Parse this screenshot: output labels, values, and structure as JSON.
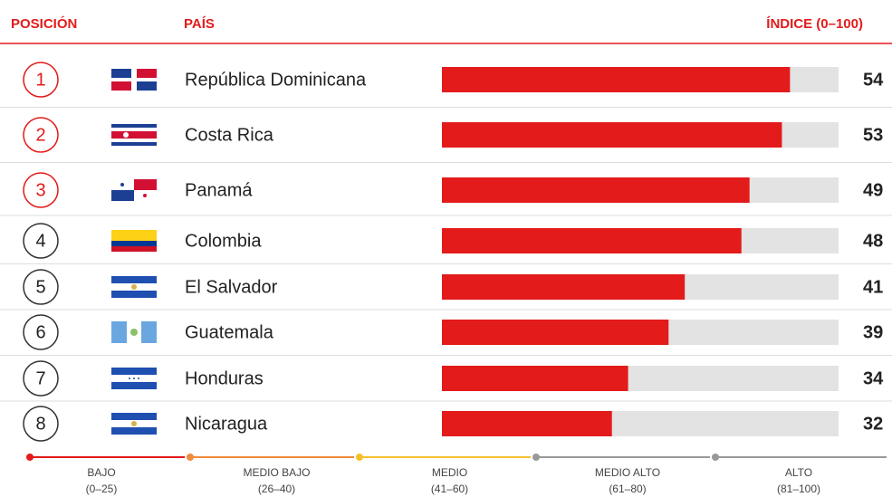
{
  "chart_data": {
    "type": "bar",
    "orientation": "horizontal",
    "headers": {
      "rank": "POSICIÓN",
      "country": "PAÍS",
      "index": "ÍNDICE (0–100)"
    },
    "ranks": [
      1,
      2,
      3,
      4,
      5,
      6,
      7,
      8
    ],
    "categories": [
      "República Dominicana",
      "Costa Rica",
      "Panamá",
      "Colombia",
      "El Salvador",
      "Guatemala",
      "Honduras",
      "Nicaragua"
    ],
    "values": [
      54,
      53,
      49,
      48,
      41,
      39,
      34,
      32
    ],
    "color": "#e31b1b",
    "track_color": "#e3e3e3",
    "highlight_color": "#e31b1b",
    "highlight_ranks": 3,
    "xlim": [
      11,
      60
    ],
    "scale": [
      {
        "name": "BAJO",
        "range": "(0–25)",
        "color": "#e31b1b"
      },
      {
        "name": "MEDIO BAJO",
        "range": "(26–40)",
        "color": "#f08a3c"
      },
      {
        "name": "MEDIO",
        "range": "(41–60)",
        "color": "#f5c02a"
      },
      {
        "name": "MEDIO ALTO",
        "range": "(61–80)",
        "color": "#999999"
      },
      {
        "name": "ALTO",
        "range": "(81–100)",
        "color": "#999999"
      }
    ]
  }
}
